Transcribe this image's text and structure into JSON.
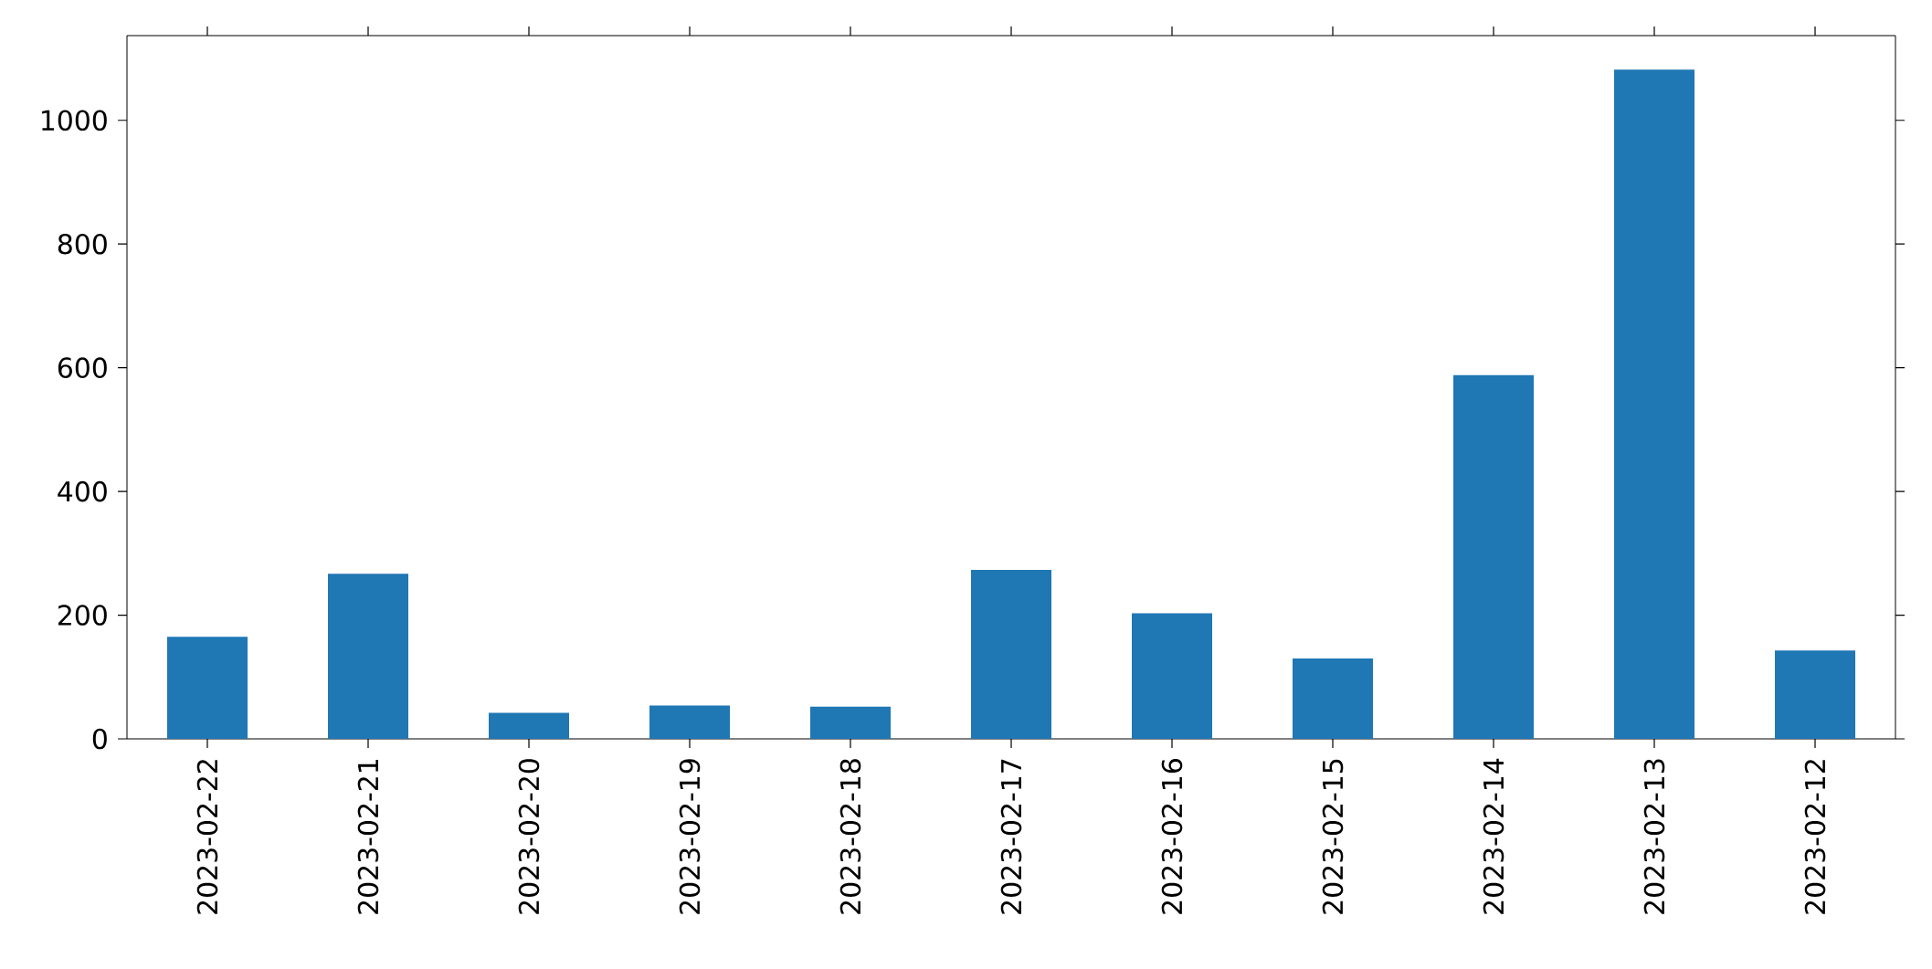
{
  "chart_data": {
    "type": "bar",
    "categories": [
      "2023-02-22",
      "2023-02-21",
      "2023-02-20",
      "2023-02-19",
      "2023-02-18",
      "2023-02-17",
      "2023-02-16",
      "2023-02-15",
      "2023-02-14",
      "2023-02-13",
      "2023-02-12"
    ],
    "values": [
      165,
      267,
      42,
      54,
      52,
      273,
      203,
      130,
      588,
      1082,
      143
    ],
    "color": "#1f77b4",
    "ylim": [
      0,
      1137
    ],
    "yticks": [
      0,
      200,
      400,
      600,
      800,
      1000
    ],
    "grid": false
  }
}
